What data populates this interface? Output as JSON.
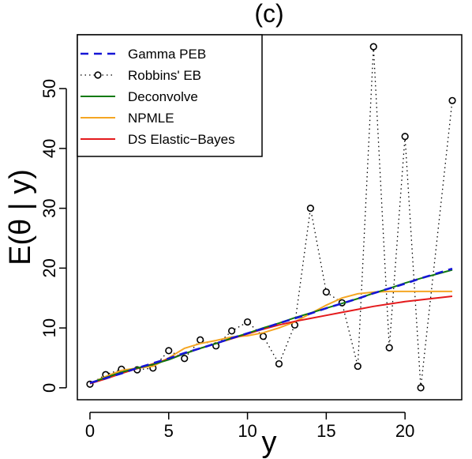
{
  "chart_data": {
    "type": "line",
    "title": "(c)",
    "xlabel": "y",
    "ylabel": "E(θ | y)",
    "xlim": [
      -0.8,
      23.6
    ],
    "ylim": [
      -2.0,
      59.0
    ],
    "x_ticks": [
      0,
      5,
      10,
      15,
      20
    ],
    "y_ticks": [
      0,
      10,
      20,
      30,
      40,
      50
    ],
    "x_tick_labels": [
      "0",
      "5",
      "10",
      "15",
      "20"
    ],
    "y_tick_labels": [
      "0",
      "10",
      "20",
      "30",
      "40",
      "50"
    ],
    "grid": false,
    "legend_position": "top-left",
    "series": [
      {
        "name": "Gamma PEB",
        "color": "#1515d6",
        "style": "dashed",
        "x": [
          0,
          1,
          2,
          3,
          4,
          5,
          6,
          7,
          8,
          9,
          10,
          11,
          12,
          13,
          14,
          15,
          16,
          17,
          18,
          19,
          20,
          21,
          22,
          23
        ],
        "y": [
          0.8,
          1.6,
          2.4,
          3.3,
          4.1,
          4.9,
          5.8,
          6.6,
          7.4,
          8.3,
          9.1,
          9.9,
          10.8,
          11.6,
          12.4,
          13.3,
          14.1,
          14.9,
          15.8,
          16.6,
          17.4,
          18.3,
          19.1,
          19.9
        ]
      },
      {
        "name": "Robbins' EB",
        "color": "#000000",
        "style": "dotted-circles",
        "x": [
          0,
          1,
          2,
          3,
          4,
          5,
          6,
          7,
          8,
          9,
          10,
          11,
          12,
          13,
          14,
          15,
          16,
          17,
          18,
          19,
          20,
          21,
          23
        ],
        "y": [
          0.6,
          2.2,
          3.1,
          3.0,
          3.3,
          6.2,
          4.9,
          8.0,
          7.0,
          9.5,
          11.0,
          8.6,
          4.0,
          10.5,
          30.0,
          16.0,
          14.2,
          3.6,
          57.0,
          6.7,
          42.0,
          0.0,
          48.0
        ]
      },
      {
        "name": "Deconvolve",
        "color": "#0f7a0f",
        "style": "solid",
        "x": [
          0,
          1,
          2,
          3,
          4,
          5,
          6,
          7,
          8,
          9,
          10,
          11,
          12,
          13,
          14,
          15,
          16,
          17,
          18,
          19,
          20,
          21,
          22,
          23
        ],
        "y": [
          0.8,
          1.7,
          2.6,
          3.3,
          3.9,
          4.7,
          5.7,
          6.6,
          7.4,
          8.3,
          9.1,
          10.0,
          10.8,
          11.7,
          12.5,
          13.3,
          14.1,
          14.9,
          15.8,
          16.6,
          17.5,
          18.3,
          19.0,
          19.7
        ]
      },
      {
        "name": "NPMLE",
        "color": "#f5a623",
        "style": "solid",
        "x": [
          0,
          1,
          2,
          3,
          4,
          5,
          6,
          7,
          8,
          9,
          10,
          11,
          12,
          13,
          14,
          15,
          16,
          17,
          18,
          19,
          20,
          21,
          22,
          23
        ],
        "y": [
          0.7,
          1.9,
          2.9,
          3.3,
          3.6,
          5.0,
          6.6,
          7.4,
          7.9,
          8.5,
          8.7,
          9.2,
          10.0,
          11.0,
          12.4,
          13.8,
          15.0,
          15.7,
          16.0,
          16.1,
          16.1,
          16.1,
          16.1,
          16.1
        ]
      },
      {
        "name": "DS Elastic−Bayes",
        "color": "#e41a1c",
        "style": "solid",
        "x": [
          0,
          1,
          2,
          3,
          4,
          5,
          6,
          7,
          8,
          9,
          10,
          11,
          12,
          13,
          14,
          15,
          16,
          17,
          18,
          19,
          20,
          21,
          22,
          23
        ],
        "y": [
          0.7,
          1.5,
          2.4,
          3.2,
          4.0,
          4.8,
          5.7,
          6.6,
          7.4,
          8.2,
          9.0,
          9.8,
          10.5,
          11.1,
          11.6,
          12.1,
          12.6,
          13.1,
          13.6,
          14.0,
          14.4,
          14.7,
          15.0,
          15.3
        ]
      }
    ]
  }
}
